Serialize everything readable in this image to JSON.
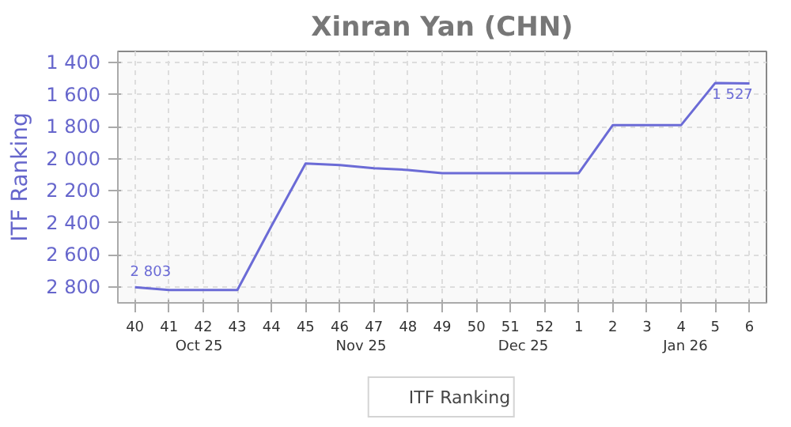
{
  "chart_data": {
    "type": "line",
    "title": "Xinran Yan (CHN)",
    "ylabel": "ITF Ranking",
    "categories": [
      "40",
      "41",
      "42",
      "43",
      "44",
      "45",
      "46",
      "47",
      "48",
      "49",
      "50",
      "51",
      "52",
      "1",
      "2",
      "3",
      "4",
      "5",
      "6"
    ],
    "series": [
      {
        "name": "ITF Ranking",
        "color": "#6b6bd6",
        "values": [
          2803,
          2820,
          2820,
          2820,
          2420,
          2030,
          2040,
          2060,
          2070,
          2090,
          2090,
          2090,
          2090,
          2090,
          1790,
          1790,
          1790,
          1527,
          1530
        ],
        "value_labels": [
          "2 803",
          null,
          null,
          null,
          null,
          null,
          null,
          null,
          null,
          null,
          null,
          null,
          null,
          null,
          null,
          null,
          null,
          "1 527",
          null
        ]
      }
    ],
    "ylim": [
      2900,
      1330
    ],
    "yticks": [
      {
        "value": 1400,
        "label": "1 400"
      },
      {
        "value": 1600,
        "label": "1 600"
      },
      {
        "value": 1800,
        "label": "1 800"
      },
      {
        "value": 2000,
        "label": "2 000"
      },
      {
        "value": 2200,
        "label": "2 200"
      },
      {
        "value": 2400,
        "label": "2 400"
      },
      {
        "value": 2600,
        "label": "2 600"
      },
      {
        "value": 2800,
        "label": "2 800"
      }
    ],
    "annotations": [
      "Oct 25",
      "Nov 25",
      "Dec 25",
      "Jan 26"
    ],
    "grid": true,
    "legend": "bottom",
    "marker": "none",
    "line_style": "solid"
  }
}
